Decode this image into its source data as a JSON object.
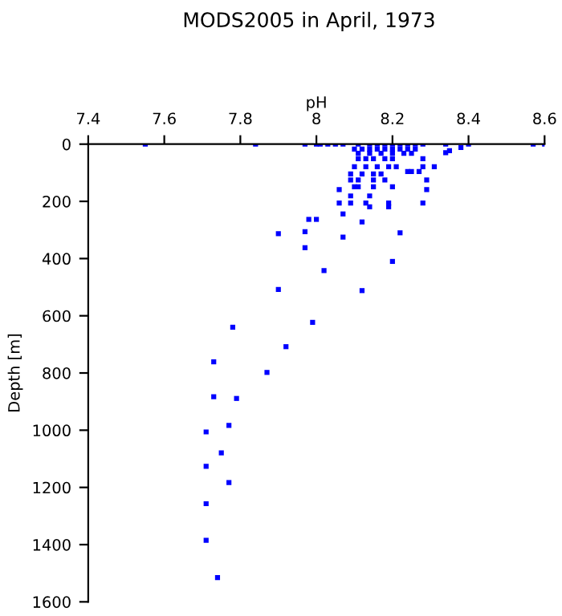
{
  "chart_data": {
    "type": "scatter",
    "title": "MODS2005 in April, 1973",
    "xlabel": "pH",
    "ylabel": "Depth [m]",
    "x": [
      7.55,
      7.84,
      7.97,
      8.0,
      8.01,
      8.03,
      8.05,
      8.07,
      8.11,
      8.14,
      8.16,
      8.18,
      8.2,
      8.22,
      8.24,
      8.26,
      8.28,
      8.34,
      8.4,
      8.57,
      8.6,
      8.1,
      8.12,
      8.14,
      8.16,
      8.18,
      8.2,
      8.22,
      8.24,
      8.26,
      8.38,
      8.35,
      8.34,
      8.11,
      8.14,
      8.17,
      8.2,
      8.23,
      8.25,
      8.11,
      8.13,
      8.15,
      8.18,
      8.2,
      8.28,
      8.1,
      8.13,
      8.16,
      8.19,
      8.21,
      8.28,
      8.31,
      8.24,
      8.25,
      8.27,
      8.09,
      8.12,
      8.15,
      8.17,
      8.09,
      8.11,
      8.15,
      8.18,
      8.29,
      8.1,
      8.11,
      8.15,
      8.2,
      8.06,
      8.29,
      8.09,
      8.14,
      8.06,
      8.09,
      8.13,
      8.19,
      8.28,
      8.14,
      8.19,
      8.07,
      7.98,
      8.0,
      8.12,
      7.97,
      8.22,
      7.9,
      8.07,
      7.97,
      8.2,
      8.02,
      7.9,
      8.12,
      7.78,
      7.99,
      7.92,
      7.73,
      7.87,
      7.73,
      7.79,
      7.77,
      7.71,
      7.75,
      7.71,
      7.77,
      7.71,
      7.71,
      7.74
    ],
    "values": [
      0,
      0,
      0,
      0,
      0,
      0,
      0,
      0,
      0,
      0,
      0,
      0,
      0,
      0,
      0,
      0,
      0,
      0,
      0,
      0,
      0,
      17,
      17,
      17,
      17,
      17,
      17,
      17,
      17,
      17,
      12,
      23,
      30,
      32,
      32,
      32,
      32,
      32,
      32,
      51,
      51,
      51,
      51,
      51,
      51,
      79,
      79,
      79,
      79,
      79,
      79,
      79,
      96,
      96,
      96,
      104,
      104,
      104,
      104,
      125,
      125,
      125,
      125,
      125,
      149,
      149,
      149,
      149,
      159,
      159,
      181,
      181,
      206,
      206,
      206,
      206,
      206,
      219,
      219,
      244,
      263,
      263,
      272,
      306,
      310,
      313,
      325,
      362,
      410,
      442,
      508,
      512,
      640,
      623,
      708,
      761,
      798,
      883,
      889,
      983,
      1006,
      1079,
      1126,
      1183,
      1257,
      1385,
      1515
    ],
    "color": "#0000ff",
    "marker": "square",
    "xlim": [
      7.4,
      8.6
    ],
    "xticks": [
      7.4,
      7.6,
      7.8,
      8,
      8.2,
      8.4,
      8.6
    ],
    "ylim": [
      1600,
      0
    ],
    "yticks": [
      0,
      200,
      400,
      600,
      800,
      1000,
      1200,
      1400,
      1600
    ],
    "grid": false
  }
}
